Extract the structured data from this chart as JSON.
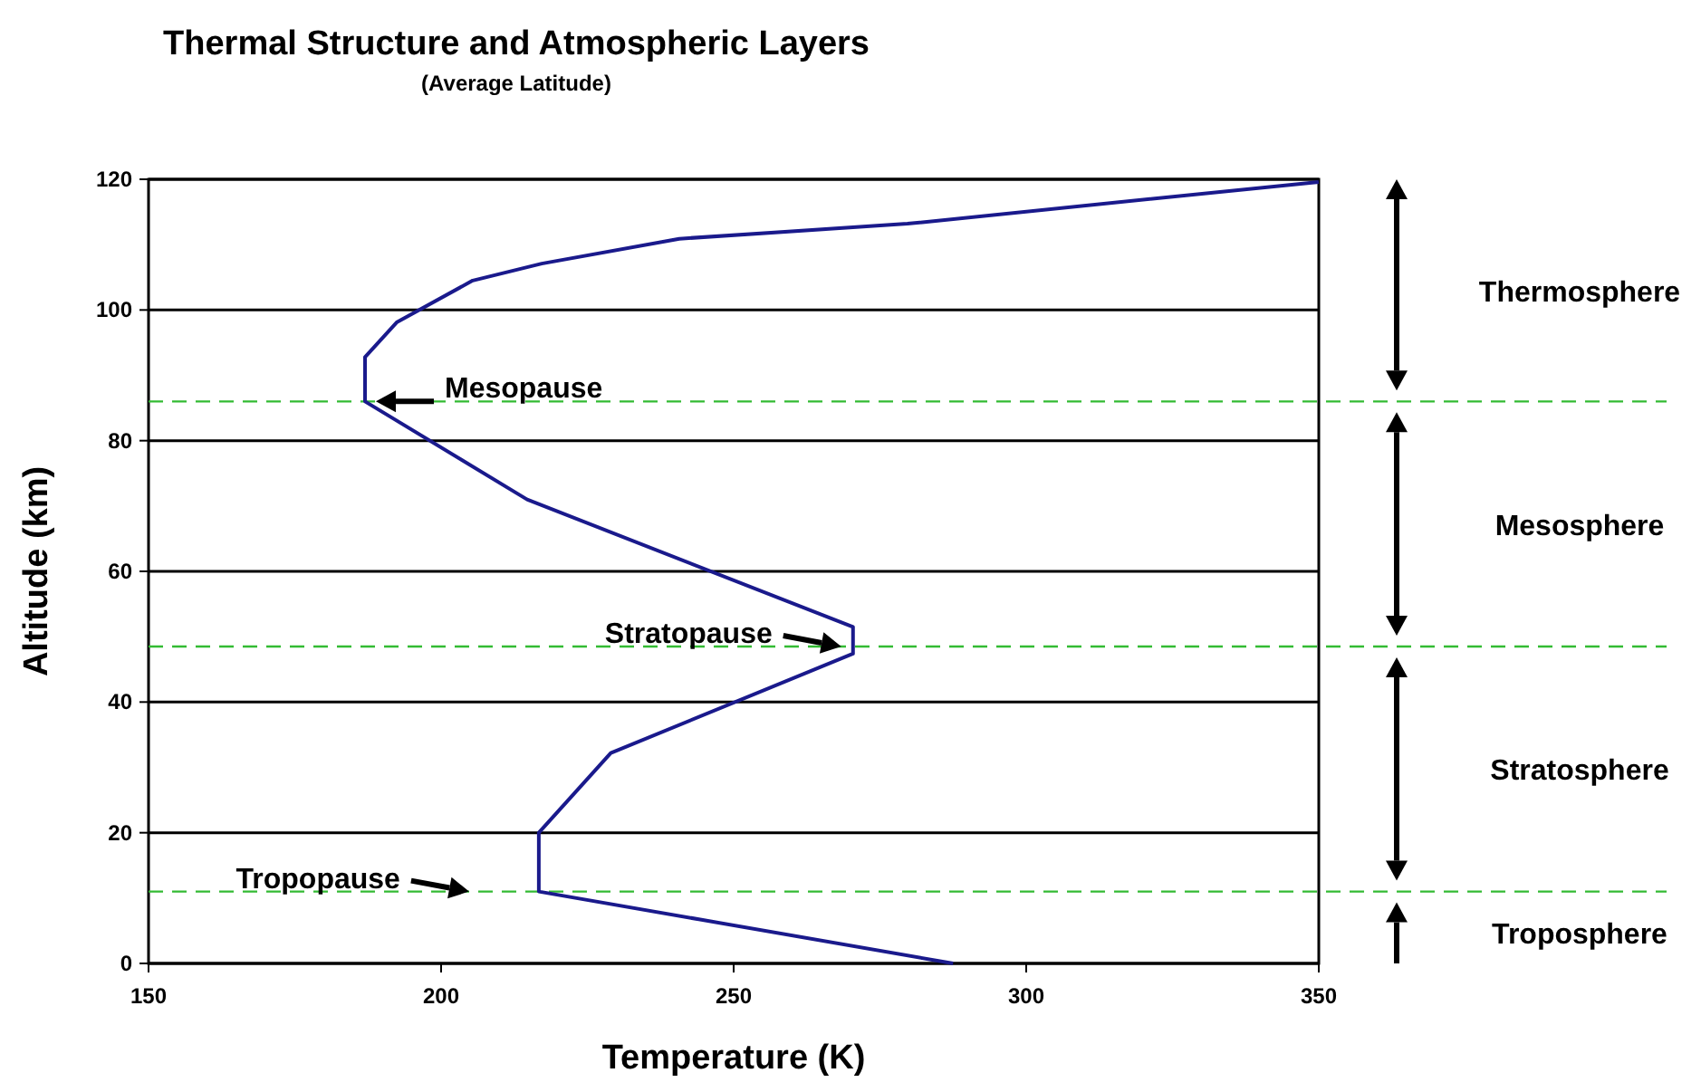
{
  "chart_data": {
    "type": "line",
    "title": "Thermal Structure and Atmospheric Layers",
    "subtitle": "(Average Latitude)",
    "xlabel": "Temperature (K)",
    "ylabel": "Altitude (km)",
    "xlim": [
      150,
      350
    ],
    "xticks": [
      150,
      200,
      250,
      300,
      350
    ],
    "ylim": [
      0,
      120
    ],
    "yticks": [
      0,
      20,
      40,
      60,
      80,
      100,
      120
    ],
    "grid": "y",
    "marker": "none",
    "line_style": "solid",
    "series": [
      {
        "color": "#1a1a8c",
        "x": [
          287.5,
          216.7,
          216.7,
          229,
          270.4,
          270.4,
          214.7,
          187,
          187,
          192.4,
          205.4,
          217.2,
          240.7,
          279.7,
          350
        ],
        "values": [
          0,
          11,
          20,
          32.2,
          47.4,
          51.5,
          71,
          86,
          92.8,
          98.1,
          104.5,
          107.1,
          110.9,
          113.2,
          119.6
        ]
      }
    ],
    "ref_lines": [
      {
        "axis": "y",
        "value": 86,
        "color": "#33bb33",
        "line_style": "dashed"
      },
      {
        "axis": "y",
        "value": 48.5,
        "color": "#33bb33",
        "line_style": "dashed"
      },
      {
        "axis": "y",
        "value": 11,
        "color": "#33bb33",
        "line_style": "dashed"
      }
    ],
    "annotations": [
      "Thermosphere",
      "Mesosphere",
      "Stratosphere",
      "Troposphere",
      {
        "text": "Mesopause",
        "x": 187,
        "y": 86
      },
      {
        "text": "Stratopause",
        "x": 269,
        "y": 48.5
      },
      {
        "text": "Tropopause",
        "x": 205.4,
        "y": 11
      }
    ]
  }
}
